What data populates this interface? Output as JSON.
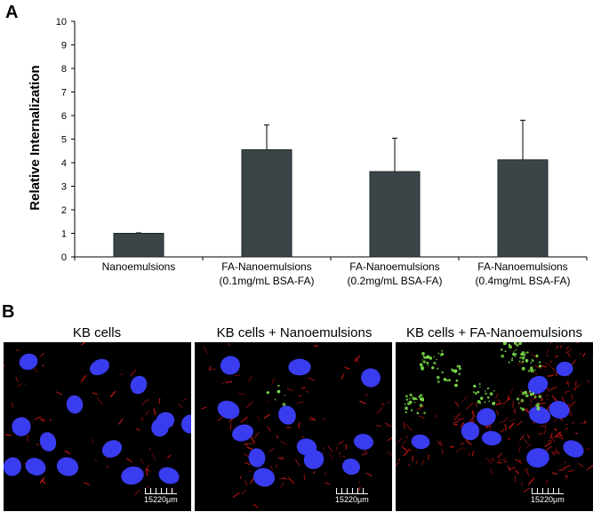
{
  "panel_a_letter": "A",
  "panel_b_letter": "B",
  "chart_data": {
    "type": "bar",
    "ylabel": "Relative Internalization",
    "xlabel": "",
    "ylim": [
      0,
      10
    ],
    "yticks": [
      0,
      1,
      2,
      3,
      4,
      5,
      6,
      7,
      8,
      9,
      10
    ],
    "categories": [
      [
        "Nanoemulsions"
      ],
      [
        "FA-Nanoemulsions",
        "(0.1mg/mL BSA-FA)"
      ],
      [
        "FA-Nanoemulsions",
        "(0.2mg/mL BSA-FA)"
      ],
      [
        "FA-Nanoemulsions",
        "(0.4mg/mL BSA-FA)"
      ]
    ],
    "values": [
      1.0,
      4.55,
      3.62,
      4.12
    ],
    "errors": [
      0.02,
      1.05,
      1.42,
      1.68
    ],
    "bar_color": "#3b4547",
    "grid": false
  },
  "images": [
    {
      "title": "KB cells",
      "scale_label": "15220μm"
    },
    {
      "title": "KB cells + Nanoemulsions",
      "scale_label": "15220μm"
    },
    {
      "title": "KB cells + FA-Nanoemulsions",
      "scale_label": "15220μm"
    }
  ],
  "colors": {
    "nuclei": "#3a3cf0",
    "membrane": "#d01818",
    "particles": "#7be04a"
  }
}
